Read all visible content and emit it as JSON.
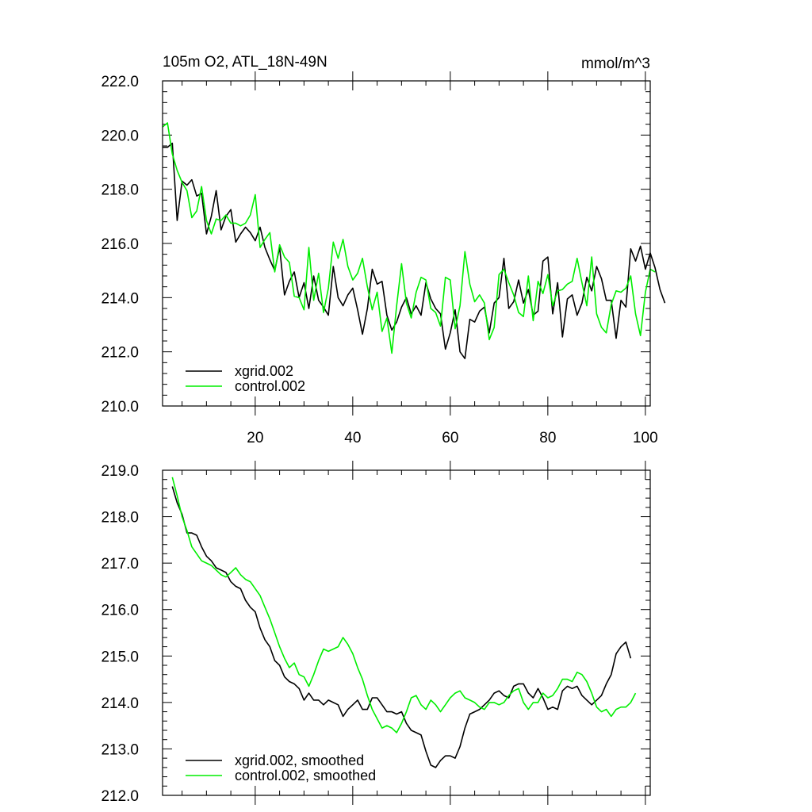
{
  "chart_data": [
    {
      "type": "line",
      "title": "105m O2, ATL_18N-49N",
      "units": "mmol/m^3",
      "xlabel": "",
      "ylabel": "",
      "xlim": [
        1,
        101
      ],
      "ylim": [
        210.0,
        222.0
      ],
      "x_ticks": [
        "20",
        "40",
        "60",
        "80",
        "100"
      ],
      "y_ticks": [
        "210.0",
        "212.0",
        "214.0",
        "216.0",
        "218.0",
        "220.0",
        "222.0"
      ],
      "legend_position": "bottom-left",
      "x_start": 1,
      "series": [
        {
          "name": "xgrid.002",
          "color": "#000000",
          "values": [
            219.55,
            219.55,
            219.7,
            216.85,
            218.3,
            218.15,
            218.35,
            217.75,
            217.85,
            216.35,
            217.0,
            217.95,
            216.5,
            217.0,
            217.25,
            216.05,
            216.35,
            216.6,
            216.4,
            216.1,
            216.6,
            215.85,
            215.4,
            215.0,
            215.85,
            214.1,
            214.6,
            214.95,
            214.0,
            214.55,
            213.6,
            214.8,
            213.9,
            213.65,
            213.35,
            215.15,
            214.0,
            213.7,
            214.1,
            214.35,
            213.55,
            212.65,
            213.6,
            215.05,
            214.5,
            214.6,
            213.35,
            212.8,
            213.1,
            213.65,
            214.0,
            213.4,
            213.7,
            213.35,
            214.55,
            213.95,
            213.6,
            213.4,
            212.1,
            212.7,
            213.55,
            212.0,
            211.75,
            213.2,
            213.1,
            213.5,
            213.65,
            212.7,
            213.8,
            214.0,
            215.45,
            213.6,
            213.85,
            214.65,
            213.8,
            214.3,
            213.35,
            213.5,
            215.35,
            215.5,
            213.4,
            214.55,
            212.55,
            213.95,
            214.1,
            213.35,
            213.8,
            214.75,
            214.25,
            215.15,
            214.7,
            213.9,
            213.9,
            212.5,
            213.9,
            213.65,
            215.8,
            215.35,
            215.9,
            215.05,
            215.65,
            215.1,
            214.3,
            213.8
          ]
        },
        {
          "name": "control.002",
          "color": "#00ee00",
          "values": [
            220.3,
            220.45,
            219.3,
            218.7,
            218.25,
            217.95,
            216.95,
            217.2,
            218.1,
            216.85,
            216.35,
            216.9,
            216.85,
            217.05,
            216.75,
            216.75,
            216.65,
            216.75,
            217.05,
            217.8,
            215.85,
            216.15,
            216.4,
            214.95,
            215.95,
            215.5,
            215.3,
            214.05,
            214.0,
            213.55,
            215.85,
            213.9,
            214.9,
            213.45,
            214.35,
            216.05,
            215.45,
            216.15,
            215.15,
            214.65,
            214.9,
            215.45,
            214.4,
            213.55,
            214.2,
            212.75,
            213.25,
            211.95,
            213.7,
            215.25,
            213.8,
            213.25,
            214.2,
            214.75,
            214.65,
            213.6,
            213.45,
            212.95,
            214.75,
            214.65,
            212.85,
            213.7,
            215.7,
            214.5,
            213.85,
            214.1,
            213.8,
            212.45,
            212.9,
            214.85,
            215.05,
            214.55,
            214.1,
            213.45,
            213.3,
            214.8,
            213.15,
            214.6,
            214.15,
            214.85,
            213.7,
            214.25,
            214.3,
            214.5,
            214.6,
            215.45,
            214.55,
            213.7,
            215.5,
            213.4,
            212.9,
            212.7,
            213.75,
            214.25,
            214.2,
            214.35,
            214.8,
            213.4,
            212.6,
            214.2,
            215.05,
            214.95
          ]
        }
      ]
    },
    {
      "type": "line",
      "title": "",
      "xlabel": "",
      "ylabel": "",
      "xlim": [
        1,
        101
      ],
      "ylim": [
        212.0,
        219.0
      ],
      "x_ticks": [],
      "y_ticks": [
        "212.0",
        "213.0",
        "214.0",
        "215.0",
        "216.0",
        "217.0",
        "218.0",
        "219.0"
      ],
      "legend_position": "bottom-left",
      "x_start": 3,
      "series": [
        {
          "name": "xgrid.002, smoothed",
          "color": "#000000",
          "values": [
            218.65,
            218.3,
            218.05,
            217.65,
            217.65,
            217.6,
            217.35,
            217.15,
            217.05,
            216.9,
            216.85,
            216.8,
            216.6,
            216.5,
            216.45,
            216.2,
            216.05,
            215.95,
            215.6,
            215.35,
            215.2,
            214.9,
            214.8,
            214.55,
            214.45,
            214.4,
            214.3,
            214.05,
            214.2,
            214.05,
            214.05,
            213.95,
            214.05,
            214.0,
            213.95,
            213.7,
            213.85,
            213.95,
            214.05,
            213.85,
            213.85,
            214.1,
            214.1,
            213.95,
            213.8,
            213.8,
            213.75,
            213.8,
            213.55,
            213.4,
            213.35,
            213.3,
            212.95,
            212.65,
            212.6,
            212.75,
            212.85,
            212.85,
            212.8,
            213.05,
            213.45,
            213.75,
            213.8,
            213.85,
            213.95,
            214.05,
            214.2,
            214.25,
            214.15,
            214.1,
            214.35,
            214.4,
            214.4,
            214.2,
            214.1,
            214.3,
            214.1,
            213.85,
            213.9,
            213.85,
            214.25,
            214.35,
            214.3,
            214.35,
            214.15,
            214.05,
            213.95,
            214.05,
            214.15,
            214.4,
            214.6,
            215.05,
            215.2,
            215.3,
            214.95
          ]
        },
        {
          "name": "control.002, smoothed",
          "color": "#00ee00",
          "values": [
            218.85,
            218.45,
            218.0,
            217.7,
            217.35,
            217.2,
            217.05,
            217.0,
            216.95,
            216.85,
            216.75,
            216.7,
            216.8,
            216.9,
            216.75,
            216.65,
            216.6,
            216.45,
            216.3,
            216.05,
            215.8,
            215.5,
            215.2,
            214.95,
            214.75,
            214.85,
            214.6,
            214.55,
            214.35,
            214.6,
            214.9,
            215.15,
            215.1,
            215.15,
            215.2,
            215.4,
            215.25,
            215.05,
            214.75,
            214.5,
            214.15,
            213.85,
            213.65,
            213.45,
            213.5,
            213.45,
            213.35,
            213.55,
            213.8,
            214.1,
            214.15,
            213.95,
            213.85,
            214.05,
            213.95,
            213.8,
            213.95,
            214.1,
            214.2,
            214.25,
            214.1,
            214.05,
            214.0,
            213.9,
            213.85,
            214.0,
            214.0,
            213.95,
            214.0,
            214.15,
            214.25,
            214.3,
            214.0,
            213.85,
            214.0,
            214.0,
            214.2,
            214.1,
            214.15,
            214.3,
            214.5,
            214.5,
            214.45,
            214.65,
            214.6,
            214.45,
            214.2,
            213.9,
            213.8,
            213.85,
            213.7,
            213.85,
            213.9,
            213.9,
            214.0,
            214.2
          ]
        }
      ]
    }
  ]
}
